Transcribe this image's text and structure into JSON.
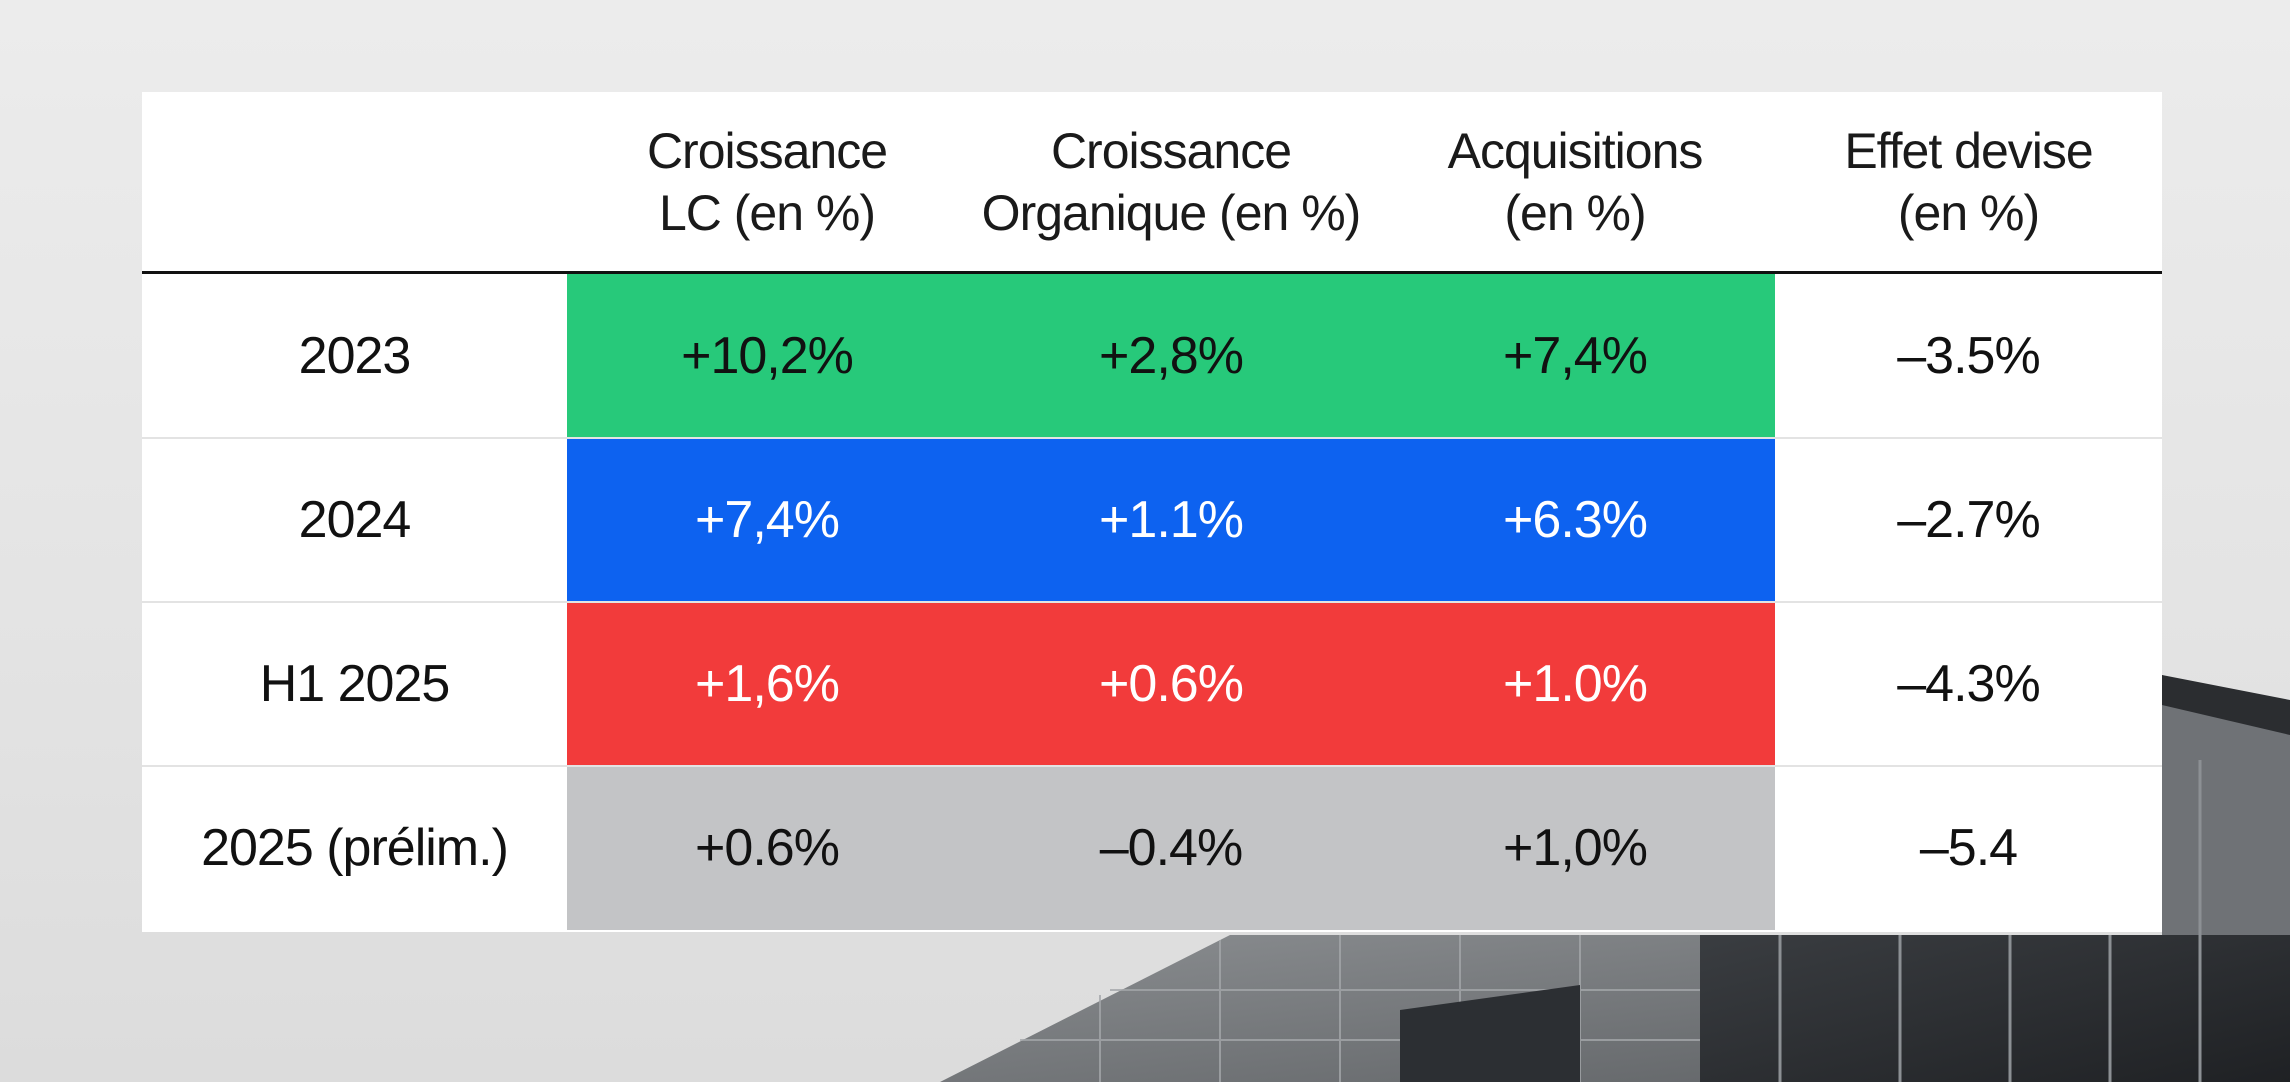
{
  "colors": {
    "row_2023": "#27c97a",
    "row_2024": "#0d62f0",
    "row_h1_2025": "#f23b3b",
    "row_2025_prelim": "#c3c4c6",
    "card": "#ffffff",
    "rule": "#111111"
  },
  "chart_data": {
    "type": "table",
    "columns": [
      "",
      "Croissance LC (en %)",
      "Croissance Organique (en %)",
      "Acquisitions (en %)",
      "Effet devise (en %)"
    ],
    "header_lines": [
      [],
      [
        "Croissance",
        "LC (en %)"
      ],
      [
        "Croissance",
        "Organique (en %)"
      ],
      [
        "Acquisitions",
        "(en %)"
      ],
      [
        "Effet devise",
        "(en %)"
      ]
    ],
    "rows": [
      {
        "label": "2023",
        "color_key": "row_2023",
        "text_tone": "dark",
        "values": [
          "+10,2%",
          "+2,8%",
          "+7,4%",
          "–3.5%"
        ]
      },
      {
        "label": "2024",
        "color_key": "row_2024",
        "text_tone": "light",
        "values": [
          "+7,4%",
          "+1.1%",
          "+6.3%",
          "–2.7%"
        ]
      },
      {
        "label": "H1 2025",
        "color_key": "row_h1_2025",
        "text_tone": "light",
        "values": [
          "+1,6%",
          "+0.6%",
          "+1.0%",
          "–4.3%"
        ]
      },
      {
        "label": "2025 (prélim.)",
        "color_key": "row_2025_prelim",
        "text_tone": "dark",
        "values": [
          "+0.6%",
          "–0.4%",
          "+1,0%",
          "–5.4"
        ]
      }
    ]
  }
}
